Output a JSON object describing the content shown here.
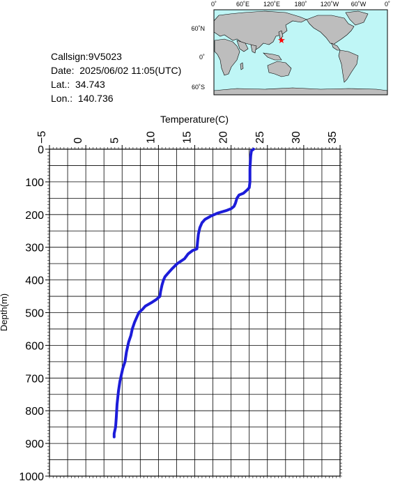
{
  "station": {
    "callsign": "Callsign:9V5023",
    "date": "Date:  2025/06/02 11:05(UTC)",
    "lat": "Lat.:  34.743",
    "lon": "Lon.:  140.736"
  },
  "map": {
    "top_labels": [
      "0˚",
      "60˚E",
      "120˚E",
      "180˚",
      "120˚W",
      "60˚W",
      "0˚"
    ],
    "side_labels": [
      "60˚N",
      "0˚",
      "60˚S"
    ],
    "marker_symbol": "★",
    "colors": {
      "ocean": "#bff6f6",
      "land": "#bdbdbd",
      "marker": "#ff0000",
      "coast": "#000000"
    }
  },
  "chart_data": {
    "type": "line",
    "title": "",
    "xlabel": "Temperature(C)",
    "ylabel": "Depth(m)",
    "xlim": [
      -5,
      35
    ],
    "ylim": [
      0,
      1000
    ],
    "x_ticks": [
      -5,
      0,
      5,
      10,
      15,
      20,
      25,
      30,
      35
    ],
    "y_ticks": [
      0,
      100,
      200,
      300,
      400,
      500,
      600,
      700,
      800,
      900,
      1000
    ],
    "grid": true,
    "line_color": "#1c1cd9",
    "series": [
      {
        "points": [
          [
            23.1,
            0
          ],
          [
            22.8,
            5
          ],
          [
            22.7,
            20
          ],
          [
            22.6,
            60
          ],
          [
            22.6,
            100
          ],
          [
            22.5,
            118
          ],
          [
            22.2,
            125
          ],
          [
            21.7,
            135
          ],
          [
            21.1,
            140
          ],
          [
            20.8,
            150
          ],
          [
            20.6,
            165
          ],
          [
            20.4,
            175
          ],
          [
            20.0,
            182
          ],
          [
            19.3,
            188
          ],
          [
            18.2,
            195
          ],
          [
            17.2,
            205
          ],
          [
            16.4,
            215
          ],
          [
            16.0,
            225
          ],
          [
            15.7,
            240
          ],
          [
            15.5,
            260
          ],
          [
            15.4,
            280
          ],
          [
            15.3,
            305
          ],
          [
            14.7,
            310
          ],
          [
            14.1,
            320
          ],
          [
            13.6,
            335
          ],
          [
            12.6,
            350
          ],
          [
            11.9,
            365
          ],
          [
            11.3,
            380
          ],
          [
            10.9,
            390
          ],
          [
            10.7,
            400
          ],
          [
            10.5,
            415
          ],
          [
            10.3,
            435
          ],
          [
            10.2,
            450
          ],
          [
            9.7,
            460
          ],
          [
            9.0,
            470
          ],
          [
            8.2,
            480
          ],
          [
            7.8,
            490
          ],
          [
            7.3,
            500
          ],
          [
            7.0,
            515
          ],
          [
            6.7,
            530
          ],
          [
            6.4,
            550
          ],
          [
            6.2,
            570
          ],
          [
            5.9,
            590
          ],
          [
            5.6,
            620
          ],
          [
            5.4,
            650
          ],
          [
            5.1,
            670
          ],
          [
            4.9,
            690
          ],
          [
            4.7,
            710
          ],
          [
            4.5,
            740
          ],
          [
            4.3,
            780
          ],
          [
            4.2,
            820
          ],
          [
            4.1,
            850
          ],
          [
            3.9,
            870
          ],
          [
            3.9,
            880
          ]
        ]
      }
    ]
  }
}
